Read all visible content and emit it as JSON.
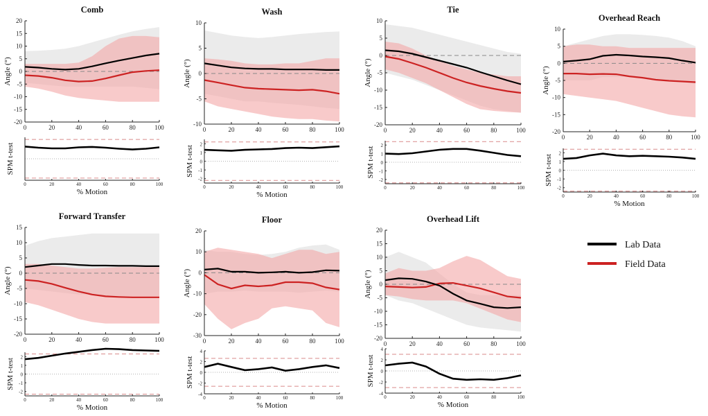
{
  "legend": [
    {
      "label": "Lab Data",
      "color": "#000000"
    },
    {
      "label": "Field Data",
      "color": "#cc2222"
    }
  ],
  "colors": {
    "lab": "#000000",
    "field": "#cc2222",
    "lab_band": "#e9e9e9",
    "field_band": "#f4a6a6",
    "threshold": "#d98a8a"
  },
  "chart_data": [
    {
      "type": "line",
      "title": "Comb",
      "xlabel": "",
      "ylabel": "Angle (°)",
      "xlim": [
        0,
        100
      ],
      "ylim": [
        -20,
        20
      ],
      "yticks": [
        -20,
        -15,
        -10,
        -5,
        0,
        5,
        10,
        15,
        20
      ],
      "xticks": [
        0,
        20,
        40,
        60,
        80,
        100
      ],
      "x": [
        0,
        10,
        20,
        30,
        40,
        50,
        60,
        70,
        80,
        90,
        100
      ],
      "series": [
        {
          "name": "Lab Data",
          "values": [
            1.8,
            1.5,
            1.0,
            0.7,
            1.0,
            2.0,
            3.2,
            4.3,
            5.3,
            6.3,
            7.0
          ],
          "upper": [
            8,
            8.2,
            8.5,
            9,
            10,
            11.5,
            13,
            14.5,
            15.8,
            16.8,
            17.5
          ],
          "lower": [
            -4.5,
            -5,
            -5.5,
            -6,
            -6,
            -6,
            -6,
            -6,
            -6,
            -6.5,
            -7
          ]
        },
        {
          "name": "Field Data",
          "values": [
            -1.5,
            -1.8,
            -2.5,
            -3.5,
            -4.0,
            -3.8,
            -2.8,
            -1.5,
            -0.3,
            0.2,
            0.5
          ],
          "upper": [
            3,
            3,
            3,
            3,
            3.5,
            6,
            10,
            13,
            14,
            14,
            13.5
          ],
          "lower": [
            -6,
            -6.8,
            -8,
            -9.5,
            -10.5,
            -11,
            -11.5,
            -12,
            -12,
            -12,
            -12
          ]
        }
      ],
      "spm": {
        "ylabel": "SPM t-test",
        "xlabel": "% Motion",
        "ylim": [
          -3,
          3
        ],
        "yticks": [],
        "threshold": 2.7,
        "values": [
          1.7,
          1.55,
          1.45,
          1.45,
          1.6,
          1.65,
          1.55,
          1.4,
          1.3,
          1.4,
          1.6
        ]
      }
    },
    {
      "type": "line",
      "title": "Wash",
      "xlabel": "",
      "ylabel": "Angle (°)",
      "xlim": [
        0,
        100
      ],
      "ylim": [
        -10,
        10
      ],
      "yticks": [
        -10,
        -5,
        0,
        5,
        10
      ],
      "xticks": [
        0,
        20,
        40,
        60,
        80,
        100
      ],
      "x": [
        0,
        10,
        20,
        30,
        40,
        50,
        60,
        70,
        80,
        90,
        100
      ],
      "series": [
        {
          "name": "Lab Data",
          "values": [
            2.0,
            1.6,
            1.2,
            1.0,
            0.9,
            0.9,
            0.8,
            0.8,
            0.8,
            0.7,
            0.7
          ],
          "upper": [
            8.5,
            8,
            7.5,
            7.2,
            7,
            7.2,
            7.5,
            7.8,
            8,
            8.2,
            8.3
          ],
          "lower": [
            -4,
            -4.5,
            -5,
            -5.5,
            -5.5,
            -5.8,
            -6,
            -6.2,
            -6.5,
            -6.8,
            -7
          ]
        },
        {
          "name": "Field Data",
          "values": [
            -1.3,
            -1.8,
            -2.3,
            -2.8,
            -3.0,
            -3.1,
            -3.2,
            -3.3,
            -3.2,
            -3.5,
            -4.0
          ],
          "upper": [
            3,
            2.8,
            2.5,
            2,
            1.8,
            1.8,
            2,
            2,
            2.5,
            3,
            3
          ],
          "lower": [
            -5.5,
            -6.5,
            -7,
            -7.5,
            -8,
            -8.5,
            -8.8,
            -9,
            -9,
            -9.3,
            -9.5
          ]
        }
      ],
      "spm": {
        "ylabel": "SPM t-test",
        "xlabel": "% Motion",
        "ylim": [
          -2.5,
          2.5
        ],
        "yticks": [
          -2,
          -1,
          0,
          1,
          2
        ],
        "threshold": 2.2,
        "values": [
          1.3,
          1.25,
          1.2,
          1.3,
          1.35,
          1.4,
          1.5,
          1.55,
          1.5,
          1.6,
          1.7
        ]
      }
    },
    {
      "type": "line",
      "title": "Tie",
      "xlabel": "",
      "ylabel": "Angle (°)",
      "xlim": [
        0,
        100
      ],
      "ylim": [
        -20,
        10
      ],
      "yticks": [
        -20,
        -15,
        -10,
        -5,
        0,
        5,
        10
      ],
      "xticks": [
        0,
        20,
        40,
        60,
        80,
        100
      ],
      "x": [
        0,
        10,
        20,
        30,
        40,
        50,
        60,
        70,
        80,
        90,
        100
      ],
      "series": [
        {
          "name": "Lab Data",
          "values": [
            1.5,
            1.2,
            0.5,
            -0.5,
            -1.5,
            -2.5,
            -3.5,
            -4.8,
            -6.0,
            -7.2,
            -8.3
          ],
          "upper": [
            9,
            8.5,
            8,
            7,
            6,
            5,
            4,
            3,
            2,
            1,
            0.5
          ],
          "lower": [
            -5,
            -6,
            -7,
            -8.5,
            -10,
            -11.5,
            -13,
            -14.5,
            -15.5,
            -16,
            -16.5
          ]
        },
        {
          "name": "Field Data",
          "values": [
            -0.3,
            -1.0,
            -2.2,
            -3.5,
            -5.0,
            -6.5,
            -7.8,
            -8.8,
            -9.6,
            -10.3,
            -10.8
          ],
          "upper": [
            4,
            3.5,
            2,
            0,
            -1.5,
            -3,
            -4,
            -5,
            -5.5,
            -6,
            -6
          ],
          "lower": [
            -4,
            -5,
            -6.5,
            -8,
            -10,
            -12,
            -14,
            -15.5,
            -16,
            -16.3,
            -16.5
          ]
        }
      ],
      "spm": {
        "ylabel": "SPM t-test",
        "xlabel": "",
        "ylim": [
          -2.5,
          2.5
        ],
        "yticks": [
          -2,
          -1,
          0,
          1,
          2
        ],
        "threshold": 2.4,
        "values": [
          1.0,
          0.95,
          1.05,
          1.25,
          1.45,
          1.55,
          1.55,
          1.35,
          1.1,
          0.85,
          0.7
        ]
      }
    },
    {
      "type": "line",
      "title": "Overhead Reach",
      "xlabel": "",
      "ylabel": "Angle (°)",
      "xlim": [
        0,
        100
      ],
      "ylim": [
        -20,
        10
      ],
      "yticks": [
        -20,
        -15,
        -10,
        -5,
        0,
        5,
        10
      ],
      "xticks": [
        0,
        20,
        40,
        60,
        80,
        100
      ],
      "x": [
        0,
        10,
        20,
        30,
        40,
        50,
        60,
        70,
        80,
        90,
        100
      ],
      "series": [
        {
          "name": "Lab Data",
          "values": [
            0.5,
            0.8,
            1.2,
            2.2,
            2.5,
            2.3,
            2.0,
            1.8,
            1.5,
            0.8,
            0.2
          ],
          "upper": [
            5,
            6,
            7,
            8,
            8.5,
            8.5,
            8.3,
            8,
            7.5,
            6.5,
            5
          ],
          "lower": [
            -5,
            -5,
            -5,
            -4,
            -4,
            -4,
            -4,
            -4.5,
            -5,
            -5.5,
            -6
          ]
        },
        {
          "name": "Field Data",
          "values": [
            -3.0,
            -3.0,
            -3.2,
            -3.1,
            -3.2,
            -3.8,
            -4.2,
            -4.8,
            -5.1,
            -5.3,
            -5.5
          ],
          "upper": [
            5,
            5.5,
            5.5,
            5,
            5,
            4.5,
            4.5,
            4.5,
            4.5,
            4.5,
            4.5
          ],
          "lower": [
            -9,
            -9.5,
            -10,
            -10.5,
            -11,
            -12,
            -13,
            -14,
            -15,
            -15.5,
            -15.8
          ]
        }
      ],
      "spm": {
        "ylabel": "SPM t-test",
        "xlabel": "% Motion",
        "ylim": [
          -2.5,
          2.5
        ],
        "yticks": [
          -2,
          -1,
          0,
          1,
          2
        ],
        "threshold": 2.4,
        "values": [
          1.3,
          1.4,
          1.7,
          1.9,
          1.7,
          1.6,
          1.65,
          1.6,
          1.55,
          1.45,
          1.3
        ]
      }
    },
    {
      "type": "line",
      "title": "Forward Transfer",
      "xlabel": "",
      "ylabel": "Angle (°)",
      "xlim": [
        0,
        100
      ],
      "ylim": [
        -20,
        15
      ],
      "yticks": [
        -20,
        -15,
        -10,
        -5,
        0,
        5,
        10,
        15
      ],
      "xticks": [
        0,
        20,
        40,
        60,
        80,
        100
      ],
      "x": [
        0,
        10,
        20,
        30,
        40,
        50,
        60,
        70,
        80,
        90,
        100
      ],
      "series": [
        {
          "name": "Lab Data",
          "values": [
            2.0,
            2.5,
            3.0,
            3.0,
            2.7,
            2.5,
            2.5,
            2.4,
            2.4,
            2.3,
            2.3
          ],
          "upper": [
            9,
            10.5,
            11.5,
            12,
            12.5,
            13,
            13,
            13,
            13,
            13,
            13
          ],
          "lower": [
            -5,
            -5.5,
            -6,
            -6.5,
            -7,
            -7,
            -7.5,
            -7.5,
            -7.5,
            -7.5,
            -7.5
          ]
        },
        {
          "name": "Field Data",
          "values": [
            -2.2,
            -2.6,
            -3.5,
            -4.8,
            -6.0,
            -7.0,
            -7.6,
            -7.8,
            -7.9,
            -7.9,
            -7.9
          ],
          "upper": [
            3,
            3,
            2.5,
            2,
            1.5,
            1.5,
            1.8,
            2,
            2,
            2,
            2
          ],
          "lower": [
            -9.5,
            -10.5,
            -12,
            -13.5,
            -15,
            -16,
            -16.5,
            -16.5,
            -16.5,
            -16.5,
            -16.5
          ]
        }
      ],
      "spm": {
        "ylabel": "SPM t-test",
        "xlabel": "% Motion",
        "ylim": [
          -2.5,
          2.5
        ],
        "yticks": [
          -2,
          -1,
          0,
          1,
          2
        ],
        "threshold": 2.3,
        "values": [
          1.7,
          1.85,
          2.1,
          2.35,
          2.55,
          2.75,
          2.9,
          2.85,
          2.75,
          2.7,
          2.65
        ]
      }
    },
    {
      "type": "line",
      "title": "Floor",
      "xlabel": "",
      "ylabel": "Angle (°)",
      "xlim": [
        0,
        100
      ],
      "ylim": [
        -30,
        20
      ],
      "yticks": [
        -30,
        -20,
        -10,
        0,
        10,
        20
      ],
      "xticks": [
        0,
        20,
        40,
        60,
        80,
        100
      ],
      "x": [
        0,
        10,
        20,
        30,
        40,
        50,
        60,
        70,
        80,
        90,
        100
      ],
      "series": [
        {
          "name": "Lab Data",
          "values": [
            1.5,
            2.0,
            0.5,
            0.5,
            0.0,
            0.2,
            0.5,
            0.0,
            0.3,
            1.2,
            1.0
          ],
          "upper": [
            11,
            10,
            10,
            9,
            8.5,
            9,
            10,
            12,
            13,
            13.5,
            11
          ],
          "lower": [
            -10,
            -9,
            -9,
            -8.5,
            -9,
            -9,
            -9,
            -9.5,
            -9,
            -8.5,
            -9
          ]
        },
        {
          "name": "Field Data",
          "values": [
            -1.0,
            -5.5,
            -7.5,
            -6.0,
            -6.5,
            -6.0,
            -4.5,
            -4.5,
            -5.0,
            -7.0,
            -8.0
          ],
          "upper": [
            10,
            12,
            11,
            10,
            9,
            7,
            9,
            11,
            11,
            9,
            10
          ],
          "lower": [
            -15,
            -22,
            -27,
            -24,
            -22,
            -17,
            -16,
            -17,
            -18,
            -24,
            -26
          ]
        }
      ],
      "spm": {
        "ylabel": "SPM t-test",
        "xlabel": "% Motion",
        "ylim": [
          -4,
          4
        ],
        "yticks": [
          -4,
          -2,
          0,
          2,
          4
        ],
        "threshold": 2.6,
        "values": [
          1.0,
          1.6,
          1.0,
          0.4,
          0.6,
          0.9,
          0.3,
          0.6,
          1.0,
          1.3,
          0.8
        ]
      }
    },
    {
      "type": "line",
      "title": "Overhead Lift",
      "xlabel": "",
      "ylabel": "Angle (°)",
      "xlim": [
        0,
        100
      ],
      "ylim": [
        -20,
        20
      ],
      "yticks": [
        -20,
        -15,
        -10,
        -5,
        0,
        5,
        10,
        15,
        20
      ],
      "xticks": [
        0,
        20,
        40,
        60,
        80,
        100
      ],
      "x": [
        0,
        10,
        20,
        30,
        40,
        50,
        60,
        70,
        80,
        90,
        100
      ],
      "series": [
        {
          "name": "Lab Data",
          "values": [
            1.5,
            2.2,
            2.0,
            1.0,
            -0.5,
            -3.5,
            -6.0,
            -7.2,
            -8.5,
            -8.8,
            -8.5
          ],
          "upper": [
            10,
            12,
            10,
            8,
            4,
            0,
            -3,
            -4,
            -4,
            -4,
            -4
          ],
          "lower": [
            -4,
            -6,
            -7,
            -9,
            -11,
            -13,
            -15,
            -16,
            -16.5,
            -17,
            -17.5
          ]
        },
        {
          "name": "Field Data",
          "values": [
            -0.8,
            -1.0,
            -1.2,
            -1.0,
            0.3,
            0.5,
            -0.5,
            -1.5,
            -3.0,
            -4.5,
            -5.0
          ],
          "upper": [
            4,
            6,
            5,
            5,
            6,
            8.5,
            10.5,
            9,
            6,
            3,
            2
          ],
          "lower": [
            -4,
            -4.5,
            -5.5,
            -6,
            -6,
            -6,
            -7,
            -9,
            -11,
            -13,
            -14
          ]
        }
      ],
      "spm": {
        "ylabel": "SPM t-test",
        "xlabel": "% Motion",
        "ylim": [
          -4,
          4
        ],
        "yticks": [
          -4,
          -2,
          0,
          2,
          4
        ],
        "threshold": 3.0,
        "values": [
          1.0,
          1.3,
          1.5,
          0.8,
          -0.5,
          -1.4,
          -1.6,
          -1.5,
          -1.6,
          -1.3,
          -0.8
        ]
      }
    }
  ]
}
